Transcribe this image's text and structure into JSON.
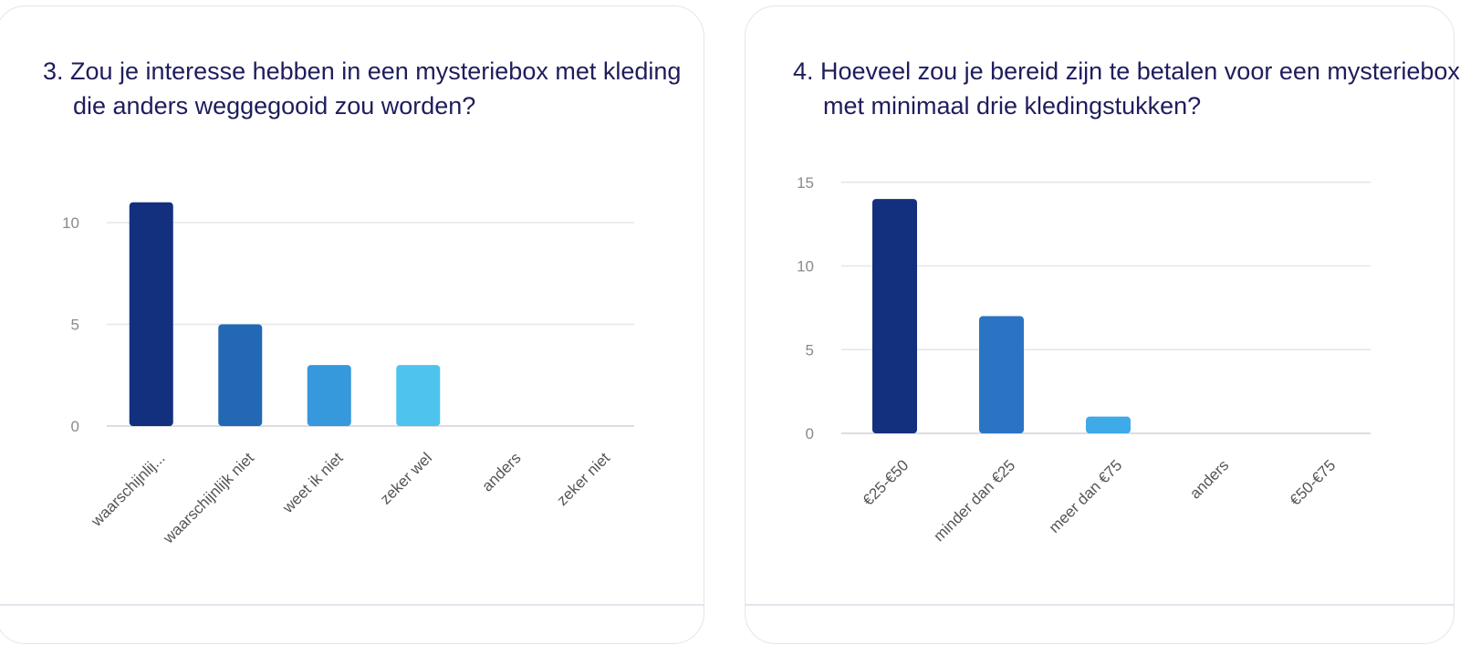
{
  "chart_data": [
    {
      "type": "bar",
      "title": "3. Zou je interesse hebben in een mysteriebox met kleding die anders weggegooid zou worden?",
      "categories": [
        "waarschijnlij...",
        "waarschijnlijk niet",
        "weet ik niet",
        "zeker wel",
        "anders",
        "zeker niet"
      ],
      "values": [
        11,
        5,
        3,
        3,
        0,
        0
      ],
      "colors": [
        "#13307f",
        "#2268b4",
        "#3599dc",
        "#4ec3ee",
        "#4ec3ee",
        "#4ec3ee"
      ],
      "yticks": [
        0,
        5,
        10
      ],
      "ylim": [
        0,
        12
      ],
      "grid": true,
      "legend": "none"
    },
    {
      "type": "bar",
      "title": "4. Hoeveel zou je bereid zijn te betalen voor een mysteriebox met minimaal drie kledingstukken?",
      "categories": [
        "€25-€50",
        "minder dan €25",
        "meer dan €75",
        "anders",
        "€50-€75"
      ],
      "values": [
        14,
        7,
        1,
        0,
        0
      ],
      "colors": [
        "#13307f",
        "#2b74c5",
        "#3eaae7",
        "#3eaae7",
        "#3eaae7"
      ],
      "yticks": [
        0,
        5,
        10,
        15
      ],
      "ylim": [
        0,
        15
      ],
      "grid": true,
      "legend": "none"
    }
  ],
  "style": {
    "title_color": "#1e1d5c",
    "tick_color": "#8a8a8a",
    "grid_color": "#e4e6ec",
    "baseline_color": "#cfd3dc"
  }
}
